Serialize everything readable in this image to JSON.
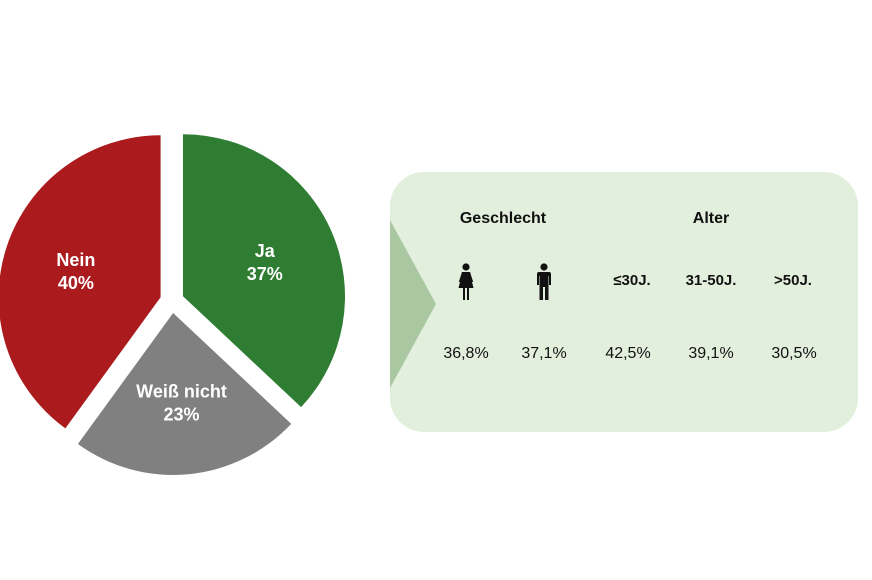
{
  "chart_data": [
    {
      "type": "pie",
      "slices": [
        {
          "label": "Ja",
          "value": 37,
          "value_label": "37%",
          "color": "#2f7d33"
        },
        {
          "label": "Weiß nicht",
          "value": 23,
          "value_label": "23%",
          "color": "#808080"
        },
        {
          "label": "Nein",
          "value": 40,
          "value_label": "40%",
          "color": "#ab1b1d"
        }
      ],
      "start_angle_deg": 0,
      "exploded": true,
      "legend": "none"
    },
    {
      "type": "table",
      "groups": [
        {
          "label": "Geschlecht",
          "span": 2
        },
        {
          "label": "Alter",
          "span": 3
        }
      ],
      "columns": [
        {
          "key": "female",
          "label": "",
          "icon": "female-person-icon",
          "value": 36.8,
          "value_label": "36,8%"
        },
        {
          "key": "male",
          "label": "",
          "icon": "male-person-icon",
          "value": 37.1,
          "value_label": "37,1%"
        },
        {
          "key": "age_le30",
          "label": "≤30J.",
          "value": 42.5,
          "value_label": "42,5%"
        },
        {
          "key": "age_31_50",
          "label": "31-50J.",
          "value": 39.1,
          "value_label": "39,1%"
        },
        {
          "key": "age_gt50",
          "label": ">50J.",
          "value": 30.5,
          "value_label": "30,5%"
        }
      ],
      "panel_color": "#e3efdd",
      "arrow_color": "#a9c8a2"
    }
  ]
}
